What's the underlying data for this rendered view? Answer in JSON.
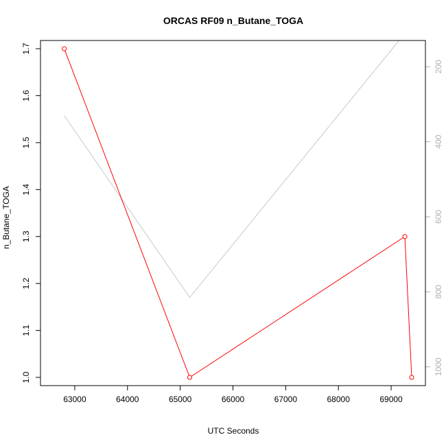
{
  "chart_data": {
    "type": "line",
    "title": "ORCAS RF09 n_Butane_TOGA",
    "xlabel": "UTC Seconds",
    "ylabel": "n_Butane_TOGA",
    "xlim": [
      62350,
      69650
    ],
    "ylim": [
      0.9825,
      1.7175
    ],
    "y2lim": [
      1050,
      130
    ],
    "x_ticks": [
      63000,
      64000,
      65000,
      66000,
      67000,
      68000,
      69000
    ],
    "y_ticks": [
      1.0,
      1.1,
      1.2,
      1.3,
      1.4,
      1.5,
      1.6,
      1.7
    ],
    "y2_ticks": [
      200,
      400,
      600,
      800,
      1000
    ],
    "series": [
      {
        "color": "#ff0000",
        "axis": "left",
        "markers": true,
        "x": [
          62800,
          65180,
          69260,
          69390
        ],
        "y": [
          1.7,
          1.0,
          1.3,
          1.0
        ]
      },
      {
        "color": "#c8c8c8",
        "axis": "right",
        "markers": false,
        "x": [
          62800,
          65180,
          69150
        ],
        "y": [
          330,
          815,
          130
        ]
      }
    ]
  }
}
